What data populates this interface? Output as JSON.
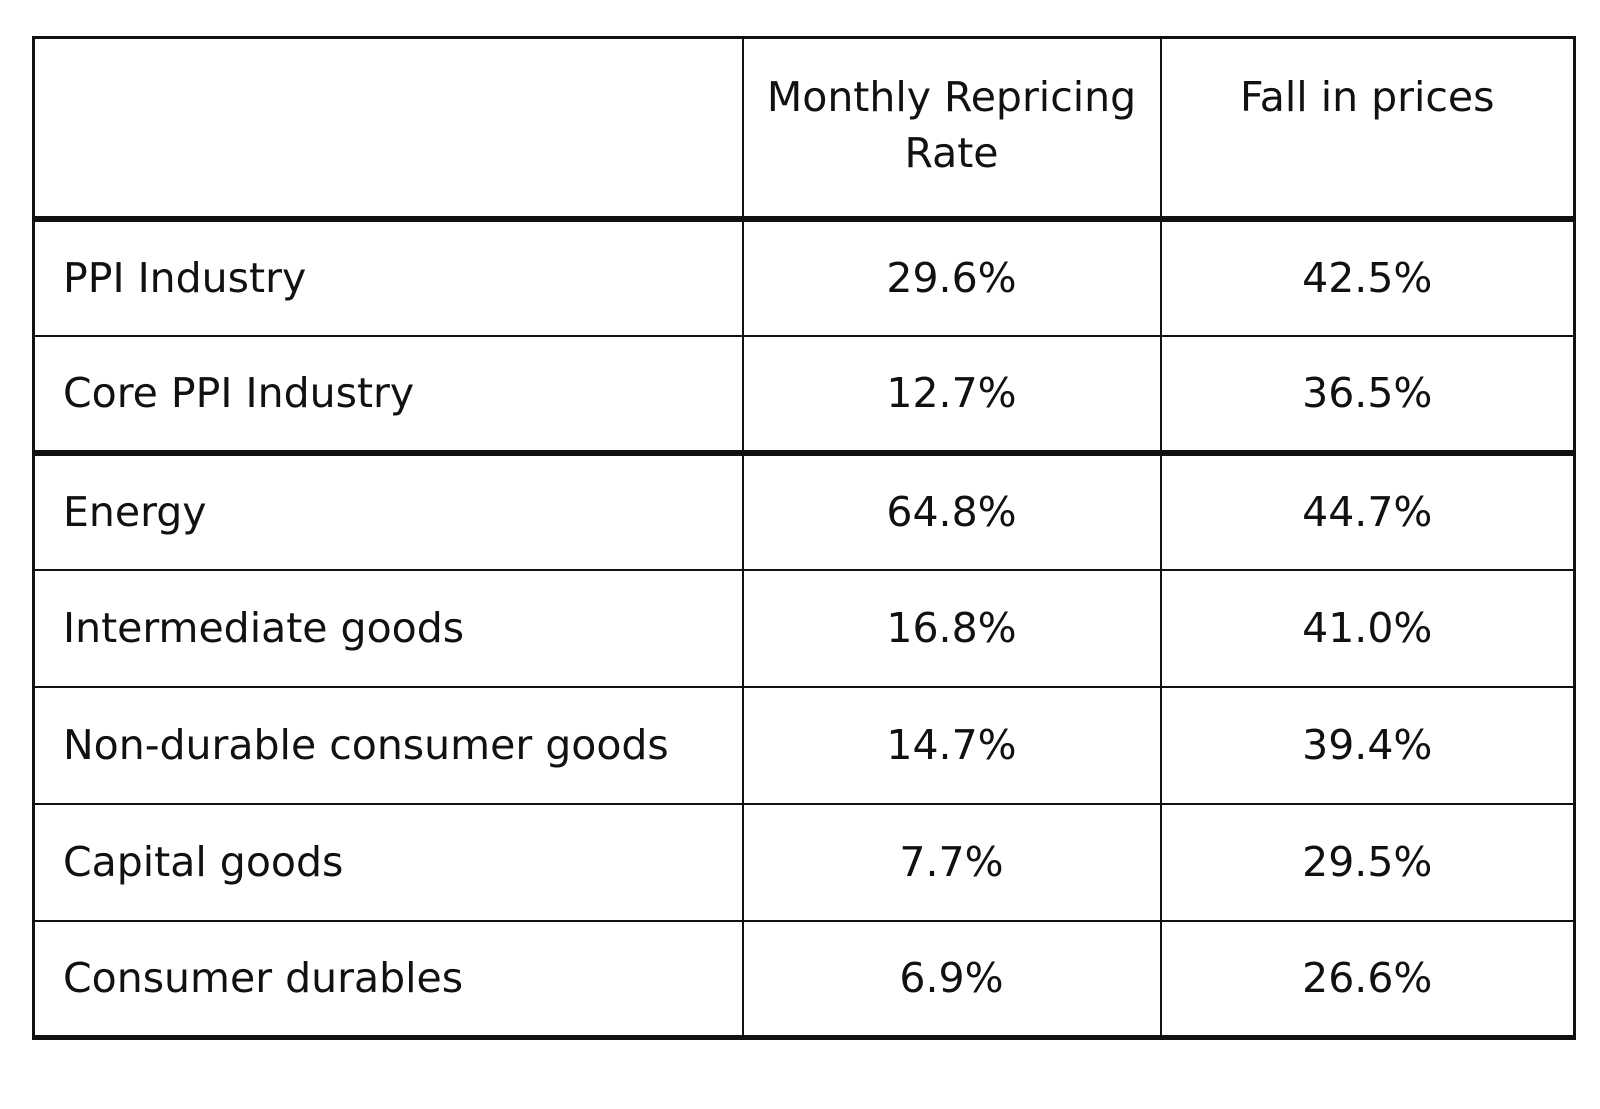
{
  "table": {
    "headers": [
      "",
      "Monthly Repricing Rate",
      "Fall in prices"
    ],
    "rows": [
      {
        "label": "PPI Industry",
        "repricing": "29.6%",
        "fall": "42.5%"
      },
      {
        "label": "Core PPI Industry",
        "repricing": "12.7%",
        "fall": "36.5%"
      },
      {
        "label": "Energy",
        "repricing": "64.8%",
        "fall": "44.7%"
      },
      {
        "label": "Intermediate goods",
        "repricing": "16.8%",
        "fall": "41.0%"
      },
      {
        "label": "Non-durable consumer goods",
        "repricing": "14.7%",
        "fall": "39.4%"
      },
      {
        "label": "Capital goods",
        "repricing": "7.7%",
        "fall": "29.5%"
      },
      {
        "label": "Consumer durables",
        "repricing": "6.9%",
        "fall": "26.6%"
      }
    ]
  }
}
